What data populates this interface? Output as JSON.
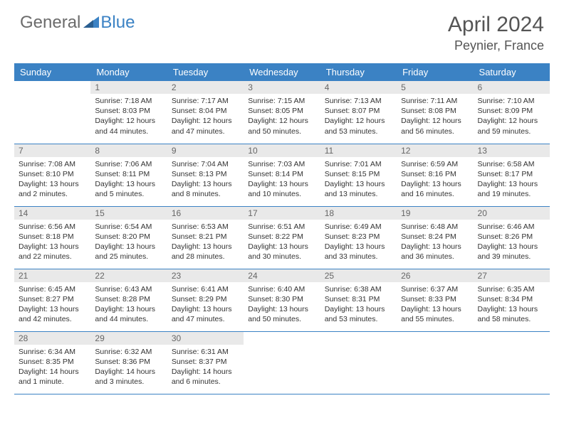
{
  "logo": {
    "word1": "General",
    "word2": "Blue",
    "color1": "#6b6b6b",
    "color2": "#3b82c4"
  },
  "title": "April 2024",
  "location": "Peynier, France",
  "colors": {
    "header_bg": "#3b82c4",
    "header_text": "#ffffff",
    "daynum_bg": "#e9e9e9",
    "daynum_text": "#666666",
    "body_text": "#333333",
    "border": "#3b82c4",
    "page_bg": "#ffffff"
  },
  "weekdays": [
    "Sunday",
    "Monday",
    "Tuesday",
    "Wednesday",
    "Thursday",
    "Friday",
    "Saturday"
  ],
  "grid": {
    "start_weekday": 1,
    "days_in_month": 30
  },
  "days": {
    "1": {
      "sunrise": "7:18 AM",
      "sunset": "8:03 PM",
      "daylight": "12 hours and 44 minutes."
    },
    "2": {
      "sunrise": "7:17 AM",
      "sunset": "8:04 PM",
      "daylight": "12 hours and 47 minutes."
    },
    "3": {
      "sunrise": "7:15 AM",
      "sunset": "8:05 PM",
      "daylight": "12 hours and 50 minutes."
    },
    "4": {
      "sunrise": "7:13 AM",
      "sunset": "8:07 PM",
      "daylight": "12 hours and 53 minutes."
    },
    "5": {
      "sunrise": "7:11 AM",
      "sunset": "8:08 PM",
      "daylight": "12 hours and 56 minutes."
    },
    "6": {
      "sunrise": "7:10 AM",
      "sunset": "8:09 PM",
      "daylight": "12 hours and 59 minutes."
    },
    "7": {
      "sunrise": "7:08 AM",
      "sunset": "8:10 PM",
      "daylight": "13 hours and 2 minutes."
    },
    "8": {
      "sunrise": "7:06 AM",
      "sunset": "8:11 PM",
      "daylight": "13 hours and 5 minutes."
    },
    "9": {
      "sunrise": "7:04 AM",
      "sunset": "8:13 PM",
      "daylight": "13 hours and 8 minutes."
    },
    "10": {
      "sunrise": "7:03 AM",
      "sunset": "8:14 PM",
      "daylight": "13 hours and 10 minutes."
    },
    "11": {
      "sunrise": "7:01 AM",
      "sunset": "8:15 PM",
      "daylight": "13 hours and 13 minutes."
    },
    "12": {
      "sunrise": "6:59 AM",
      "sunset": "8:16 PM",
      "daylight": "13 hours and 16 minutes."
    },
    "13": {
      "sunrise": "6:58 AM",
      "sunset": "8:17 PM",
      "daylight": "13 hours and 19 minutes."
    },
    "14": {
      "sunrise": "6:56 AM",
      "sunset": "8:18 PM",
      "daylight": "13 hours and 22 minutes."
    },
    "15": {
      "sunrise": "6:54 AM",
      "sunset": "8:20 PM",
      "daylight": "13 hours and 25 minutes."
    },
    "16": {
      "sunrise": "6:53 AM",
      "sunset": "8:21 PM",
      "daylight": "13 hours and 28 minutes."
    },
    "17": {
      "sunrise": "6:51 AM",
      "sunset": "8:22 PM",
      "daylight": "13 hours and 30 minutes."
    },
    "18": {
      "sunrise": "6:49 AM",
      "sunset": "8:23 PM",
      "daylight": "13 hours and 33 minutes."
    },
    "19": {
      "sunrise": "6:48 AM",
      "sunset": "8:24 PM",
      "daylight": "13 hours and 36 minutes."
    },
    "20": {
      "sunrise": "6:46 AM",
      "sunset": "8:26 PM",
      "daylight": "13 hours and 39 minutes."
    },
    "21": {
      "sunrise": "6:45 AM",
      "sunset": "8:27 PM",
      "daylight": "13 hours and 42 minutes."
    },
    "22": {
      "sunrise": "6:43 AM",
      "sunset": "8:28 PM",
      "daylight": "13 hours and 44 minutes."
    },
    "23": {
      "sunrise": "6:41 AM",
      "sunset": "8:29 PM",
      "daylight": "13 hours and 47 minutes."
    },
    "24": {
      "sunrise": "6:40 AM",
      "sunset": "8:30 PM",
      "daylight": "13 hours and 50 minutes."
    },
    "25": {
      "sunrise": "6:38 AM",
      "sunset": "8:31 PM",
      "daylight": "13 hours and 53 minutes."
    },
    "26": {
      "sunrise": "6:37 AM",
      "sunset": "8:33 PM",
      "daylight": "13 hours and 55 minutes."
    },
    "27": {
      "sunrise": "6:35 AM",
      "sunset": "8:34 PM",
      "daylight": "13 hours and 58 minutes."
    },
    "28": {
      "sunrise": "6:34 AM",
      "sunset": "8:35 PM",
      "daylight": "14 hours and 1 minute."
    },
    "29": {
      "sunrise": "6:32 AM",
      "sunset": "8:36 PM",
      "daylight": "14 hours and 3 minutes."
    },
    "30": {
      "sunrise": "6:31 AM",
      "sunset": "8:37 PM",
      "daylight": "14 hours and 6 minutes."
    }
  },
  "labels": {
    "sunrise": "Sunrise:",
    "sunset": "Sunset:",
    "daylight": "Daylight:"
  }
}
